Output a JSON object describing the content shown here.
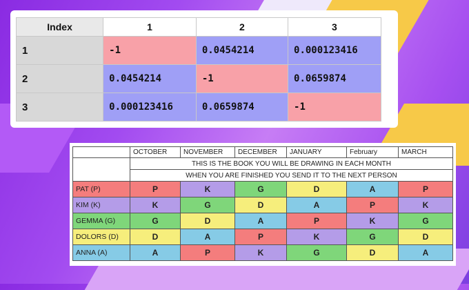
{
  "matrix": {
    "header": {
      "index": "Index",
      "cols": [
        "1",
        "2",
        "3"
      ]
    },
    "rows": [
      {
        "label": "1",
        "cells": [
          {
            "v": "-1",
            "c": "red"
          },
          {
            "v": "0.0454214",
            "c": "blue"
          },
          {
            "v": "0.000123416",
            "c": "blue"
          }
        ]
      },
      {
        "label": "2",
        "cells": [
          {
            "v": "0.0454214",
            "c": "blue"
          },
          {
            "v": "-1",
            "c": "red"
          },
          {
            "v": "0.0659874",
            "c": "blue"
          }
        ]
      },
      {
        "label": "3",
        "cells": [
          {
            "v": "0.000123416",
            "c": "blue"
          },
          {
            "v": "0.0659874",
            "c": "blue"
          },
          {
            "v": "-1",
            "c": "red"
          }
        ]
      }
    ],
    "colors": {
      "red": "#f8a1a8",
      "blue": "#9f9ff6"
    }
  },
  "schedule": {
    "months": [
      "OCTOBER",
      "NOVEMBER",
      "DECEMBER",
      "JANUARY",
      "February",
      "MARCH"
    ],
    "message_line1": "THIS IS THE BOOK YOU WILL BE DRAWING IN EACH MONTH",
    "message_line2": "WHEN YOU ARE FINISHED YOU SEND IT TO THE NEXT PERSON",
    "people": [
      {
        "name": "PAT (P)",
        "row_color": "red",
        "cells": [
          {
            "v": "P",
            "c": "red"
          },
          {
            "v": "K",
            "c": "purple"
          },
          {
            "v": "G",
            "c": "green"
          },
          {
            "v": "D",
            "c": "yellow"
          },
          {
            "v": "A",
            "c": "blue"
          },
          {
            "v": "P",
            "c": "red"
          }
        ]
      },
      {
        "name": "KIM (K)",
        "row_color": "purple",
        "cells": [
          {
            "v": "K",
            "c": "purple"
          },
          {
            "v": "G",
            "c": "green"
          },
          {
            "v": "D",
            "c": "yellow"
          },
          {
            "v": "A",
            "c": "blue"
          },
          {
            "v": "P",
            "c": "red"
          },
          {
            "v": "K",
            "c": "purple"
          }
        ]
      },
      {
        "name": "GEMMA (G)",
        "row_color": "green",
        "cells": [
          {
            "v": "G",
            "c": "green"
          },
          {
            "v": "D",
            "c": "yellow"
          },
          {
            "v": "A",
            "c": "blue"
          },
          {
            "v": "P",
            "c": "red"
          },
          {
            "v": "K",
            "c": "purple"
          },
          {
            "v": "G",
            "c": "green"
          }
        ]
      },
      {
        "name": "DOLORS (D)",
        "row_color": "yellow",
        "cells": [
          {
            "v": "D",
            "c": "yellow"
          },
          {
            "v": "A",
            "c": "blue"
          },
          {
            "v": "P",
            "c": "red"
          },
          {
            "v": "K",
            "c": "purple"
          },
          {
            "v": "G",
            "c": "green"
          },
          {
            "v": "D",
            "c": "yellow"
          }
        ]
      },
      {
        "name": "ANNA (A)",
        "row_color": "blue",
        "cells": [
          {
            "v": "A",
            "c": "blue"
          },
          {
            "v": "P",
            "c": "red"
          },
          {
            "v": "K",
            "c": "purple"
          },
          {
            "v": "G",
            "c": "green"
          },
          {
            "v": "D",
            "c": "yellow"
          },
          {
            "v": "A",
            "c": "blue"
          }
        ]
      }
    ],
    "colors": {
      "red": "#f47d7d",
      "purple": "#b49ce8",
      "green": "#7fd67a",
      "yellow": "#f6ee7c",
      "blue": "#86cbe6"
    }
  }
}
